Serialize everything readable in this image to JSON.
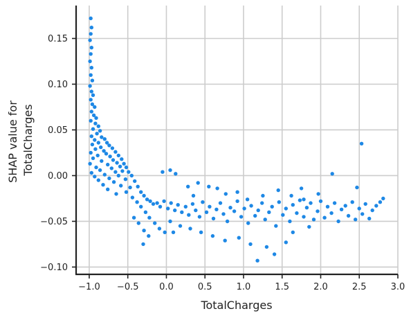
{
  "chart_data": {
    "type": "scatter",
    "title": "",
    "xlabel": "TotalCharges",
    "ylabel_lines": [
      "SHAP value for",
      "TotalCharges"
    ],
    "xlim": [
      -1.17,
      3.0
    ],
    "ylim": [
      -0.108,
      0.186
    ],
    "xticks": [
      -1.0,
      -0.5,
      0.0,
      0.5,
      1.0,
      1.5,
      2.0,
      2.5,
      3.0
    ],
    "xtick_labels": [
      "−1.0",
      "−0.5",
      "0.0",
      "0.5",
      "1.0",
      "1.5",
      "2.0",
      "2.5",
      "3.0"
    ],
    "yticks": [
      -0.1,
      -0.05,
      0.0,
      0.05,
      0.1,
      0.15
    ],
    "ytick_labels": [
      "−0.10",
      "−0.05",
      "0.00",
      "0.05",
      "0.10",
      "0.15"
    ],
    "grid": true,
    "marker_color": "#1e88e5",
    "points": [
      [
        -0.98,
        0.172
      ],
      [
        -0.97,
        0.162
      ],
      [
        -0.98,
        0.155
      ],
      [
        -0.99,
        0.148
      ],
      [
        -0.97,
        0.14
      ],
      [
        -0.98,
        0.133
      ],
      [
        -0.99,
        0.125
      ],
      [
        -0.97,
        0.118
      ],
      [
        -0.98,
        0.11
      ],
      [
        -0.96,
        0.104
      ],
      [
        -0.99,
        0.098
      ],
      [
        -0.97,
        0.092
      ],
      [
        -0.95,
        0.088
      ],
      [
        -0.98,
        0.083
      ],
      [
        -0.96,
        0.078
      ],
      [
        -0.93,
        0.075
      ],
      [
        -0.97,
        0.07
      ],
      [
        -0.94,
        0.066
      ],
      [
        -0.91,
        0.063
      ],
      [
        -0.98,
        0.06
      ],
      [
        -0.92,
        0.057
      ],
      [
        -0.88,
        0.054
      ],
      [
        -0.95,
        0.051
      ],
      [
        -0.86,
        0.049
      ],
      [
        -0.9,
        0.046
      ],
      [
        -0.97,
        0.043
      ],
      [
        -0.84,
        0.042
      ],
      [
        -0.93,
        0.039
      ],
      [
        -0.8,
        0.04
      ],
      [
        -0.88,
        0.036
      ],
      [
        -0.96,
        0.034
      ],
      [
        -0.77,
        0.036
      ],
      [
        -0.85,
        0.031
      ],
      [
        -0.92,
        0.029
      ],
      [
        -0.74,
        0.033
      ],
      [
        -0.81,
        0.027
      ],
      [
        -0.98,
        0.025
      ],
      [
        -0.7,
        0.03
      ],
      [
        -0.78,
        0.024
      ],
      [
        -0.89,
        0.022
      ],
      [
        -0.66,
        0.026
      ],
      [
        -0.73,
        0.021
      ],
      [
        -0.95,
        0.019
      ],
      [
        -0.62,
        0.022
      ],
      [
        -0.69,
        0.017
      ],
      [
        -0.84,
        0.016
      ],
      [
        -0.58,
        0.018
      ],
      [
        -0.64,
        0.014
      ],
      [
        -0.99,
        0.013
      ],
      [
        -0.76,
        0.012
      ],
      [
        -0.55,
        0.013
      ],
      [
        -0.6,
        0.01
      ],
      [
        -0.91,
        0.009
      ],
      [
        -0.71,
        0.008
      ],
      [
        -0.52,
        0.009
      ],
      [
        -0.86,
        0.006
      ],
      [
        -0.66,
        0.004
      ],
      [
        -0.97,
        0.003
      ],
      [
        -0.57,
        0.005
      ],
      [
        -0.8,
        0.001
      ],
      [
        -0.49,
        0.004
      ],
      [
        -0.93,
        -0.001
      ],
      [
        -0.62,
        0.0
      ],
      [
        -0.74,
        -0.003
      ],
      [
        -0.45,
        0.0
      ],
      [
        -0.88,
        -0.005
      ],
      [
        -0.53,
        -0.004
      ],
      [
        -0.68,
        -0.007
      ],
      [
        -0.82,
        -0.01
      ],
      [
        -0.41,
        -0.006
      ],
      [
        -0.59,
        -0.011
      ],
      [
        -0.76,
        -0.015
      ],
      [
        -0.47,
        -0.013
      ],
      [
        -0.37,
        -0.012
      ],
      [
        -0.65,
        -0.02
      ],
      [
        -0.52,
        -0.018
      ],
      [
        -0.33,
        -0.018
      ],
      [
        -0.44,
        -0.024
      ],
      [
        -0.29,
        -0.022
      ],
      [
        -0.38,
        -0.029
      ],
      [
        -0.25,
        -0.026
      ],
      [
        -0.33,
        -0.034
      ],
      [
        -0.21,
        -0.028
      ],
      [
        -0.27,
        -0.04
      ],
      [
        -0.17,
        -0.031
      ],
      [
        -0.42,
        -0.046
      ],
      [
        -0.12,
        -0.03
      ],
      [
        -0.22,
        -0.046
      ],
      [
        -0.08,
        -0.034
      ],
      [
        -0.36,
        -0.052
      ],
      [
        -0.03,
        -0.028
      ],
      [
        -0.15,
        -0.052
      ],
      [
        0.02,
        -0.036
      ],
      [
        -0.29,
        -0.06
      ],
      [
        0.06,
        -0.03
      ],
      [
        -0.09,
        -0.058
      ],
      [
        0.11,
        -0.038
      ],
      [
        -0.23,
        -0.066
      ],
      [
        0.15,
        -0.032
      ],
      [
        -0.02,
        -0.062
      ],
      [
        0.2,
        -0.04
      ],
      [
        -0.3,
        -0.075
      ],
      [
        0.25,
        -0.034
      ],
      [
        0.05,
        -0.05
      ],
      [
        0.29,
        -0.043
      ],
      [
        0.34,
        -0.031
      ],
      [
        0.09,
        -0.062
      ],
      [
        0.38,
        -0.038
      ],
      [
        0.43,
        -0.045
      ],
      [
        0.47,
        -0.029
      ],
      [
        0.52,
        -0.04
      ],
      [
        0.18,
        -0.055
      ],
      [
        0.56,
        -0.034
      ],
      [
        0.61,
        -0.047
      ],
      [
        0.65,
        -0.037
      ],
      [
        0.31,
        -0.058
      ],
      [
        0.7,
        -0.03
      ],
      [
        0.74,
        -0.042
      ],
      [
        0.79,
        -0.05
      ],
      [
        0.83,
        -0.035
      ],
      [
        0.45,
        -0.062
      ],
      [
        0.88,
        -0.039
      ],
      [
        0.92,
        -0.028
      ],
      [
        0.97,
        -0.045
      ],
      [
        1.01,
        -0.036
      ],
      [
        0.6,
        -0.066
      ],
      [
        1.06,
        -0.052
      ],
      [
        1.1,
        -0.033
      ],
      [
        1.15,
        -0.044
      ],
      [
        1.19,
        -0.038
      ],
      [
        0.76,
        -0.071
      ],
      [
        1.24,
        -0.03
      ],
      [
        1.28,
        -0.048
      ],
      [
        1.33,
        -0.04
      ],
      [
        1.37,
        -0.034
      ],
      [
        0.94,
        -0.068
      ],
      [
        1.42,
        -0.055
      ],
      [
        1.46,
        -0.029
      ],
      [
        1.51,
        -0.043
      ],
      [
        1.55,
        -0.036
      ],
      [
        1.09,
        -0.075
      ],
      [
        1.6,
        -0.05
      ],
      [
        1.64,
        -0.032
      ],
      [
        1.69,
        -0.041
      ],
      [
        1.73,
        -0.027
      ],
      [
        1.18,
        -0.093
      ],
      [
        1.78,
        -0.045
      ],
      [
        1.82,
        -0.035
      ],
      [
        1.87,
        -0.03
      ],
      [
        1.91,
        -0.048
      ],
      [
        1.3,
        -0.078
      ],
      [
        1.96,
        -0.039
      ],
      [
        2.0,
        -0.028
      ],
      [
        2.05,
        -0.046
      ],
      [
        2.09,
        -0.034
      ],
      [
        1.4,
        -0.086
      ],
      [
        2.14,
        -0.041
      ],
      [
        2.18,
        -0.03
      ],
      [
        2.23,
        -0.05
      ],
      [
        2.27,
        -0.037
      ],
      [
        1.55,
        -0.073
      ],
      [
        2.32,
        -0.033
      ],
      [
        2.36,
        -0.044
      ],
      [
        2.41,
        -0.029
      ],
      [
        2.45,
        -0.048
      ],
      [
        1.64,
        -0.062
      ],
      [
        2.5,
        -0.036
      ],
      [
        2.54,
        -0.042
      ],
      [
        2.58,
        -0.031
      ],
      [
        2.63,
        -0.047
      ],
      [
        1.85,
        -0.056
      ],
      [
        2.67,
        -0.038
      ],
      [
        2.72,
        -0.033
      ],
      [
        2.77,
        -0.029
      ],
      [
        2.81,
        -0.025
      ],
      [
        2.53,
        0.035
      ],
      [
        2.15,
        0.002
      ],
      [
        2.47,
        -0.013
      ],
      [
        1.97,
        -0.02
      ],
      [
        1.78,
        -0.026
      ],
      [
        0.05,
        0.006
      ],
      [
        0.12,
        0.002
      ],
      [
        -0.05,
        0.004
      ],
      [
        0.28,
        -0.012
      ],
      [
        0.41,
        -0.008
      ],
      [
        0.55,
        -0.012
      ],
      [
        0.77,
        -0.02
      ],
      [
        0.92,
        -0.018
      ],
      [
        1.25,
        -0.022
      ],
      [
        1.45,
        -0.016
      ],
      [
        1.75,
        -0.014
      ],
      [
        0.35,
        -0.022
      ],
      [
        0.66,
        -0.014
      ],
      [
        1.05,
        -0.026
      ],
      [
        1.62,
        -0.022
      ]
    ]
  }
}
